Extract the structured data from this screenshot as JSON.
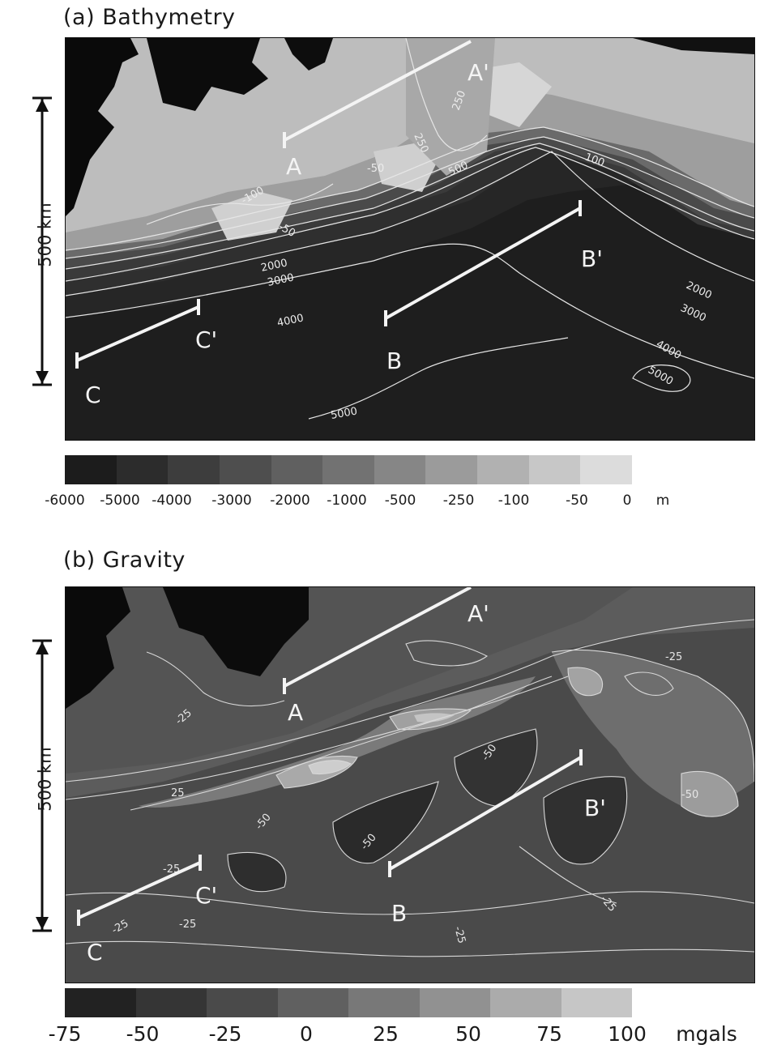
{
  "panels": [
    {
      "title": "(a)  Bathymetry",
      "scale_label": "500 km",
      "profile_labels": [
        "A",
        "A'",
        "B",
        "B'",
        "C",
        "C'"
      ],
      "contour_labels": [
        "250",
        "250",
        "100",
        "500",
        "-50",
        "-100",
        "-50",
        "2000",
        "3000",
        "4000",
        "2000",
        "3000",
        "4000",
        "5000",
        "5000"
      ],
      "colorbar": {
        "ticks": [
          "-6000",
          "-5000",
          "-4000",
          "-3000",
          "-2000",
          "-1000",
          "-500",
          "-250",
          "-100",
          "-50",
          "0",
          "m"
        ],
        "colors": [
          "#1c1c1c",
          "#2c2c2c",
          "#3d3d3d",
          "#4e4e4e",
          "#606060",
          "#727272",
          "#868686",
          "#9b9b9b",
          "#b1b1b1",
          "#c7c7c7",
          "#dcdcdc"
        ]
      }
    },
    {
      "title": "(b)  Gravity",
      "scale_label": "500 km",
      "profile_labels": [
        "A",
        "A'",
        "B",
        "B'",
        "C",
        "C'"
      ],
      "contour_labels": [
        "-25",
        "-25",
        "-25",
        "-50",
        "-50",
        "-25",
        "-25",
        "-25",
        "-25",
        "-50",
        "25",
        "-50"
      ],
      "colorbar": {
        "ticks": [
          "-75",
          "-50",
          "-25",
          "0",
          "25",
          "50",
          "75",
          "100",
          "mgals"
        ],
        "colors": [
          "#222222",
          "#353535",
          "#4a4a4a",
          "#606060",
          "#787878",
          "#919191",
          "#ababab",
          "#c6c6c6"
        ]
      }
    }
  ]
}
